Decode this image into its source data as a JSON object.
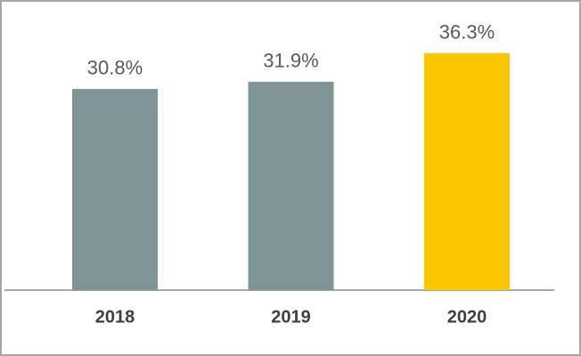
{
  "chart_data": {
    "type": "bar",
    "categories": [
      "2018",
      "2019",
      "2020"
    ],
    "values": [
      30.8,
      31.9,
      36.3
    ],
    "value_labels": [
      "30.8%",
      "31.9%",
      "36.3%"
    ],
    "colors": [
      "#7f9497",
      "#7f9497",
      "#fac700"
    ]
  }
}
